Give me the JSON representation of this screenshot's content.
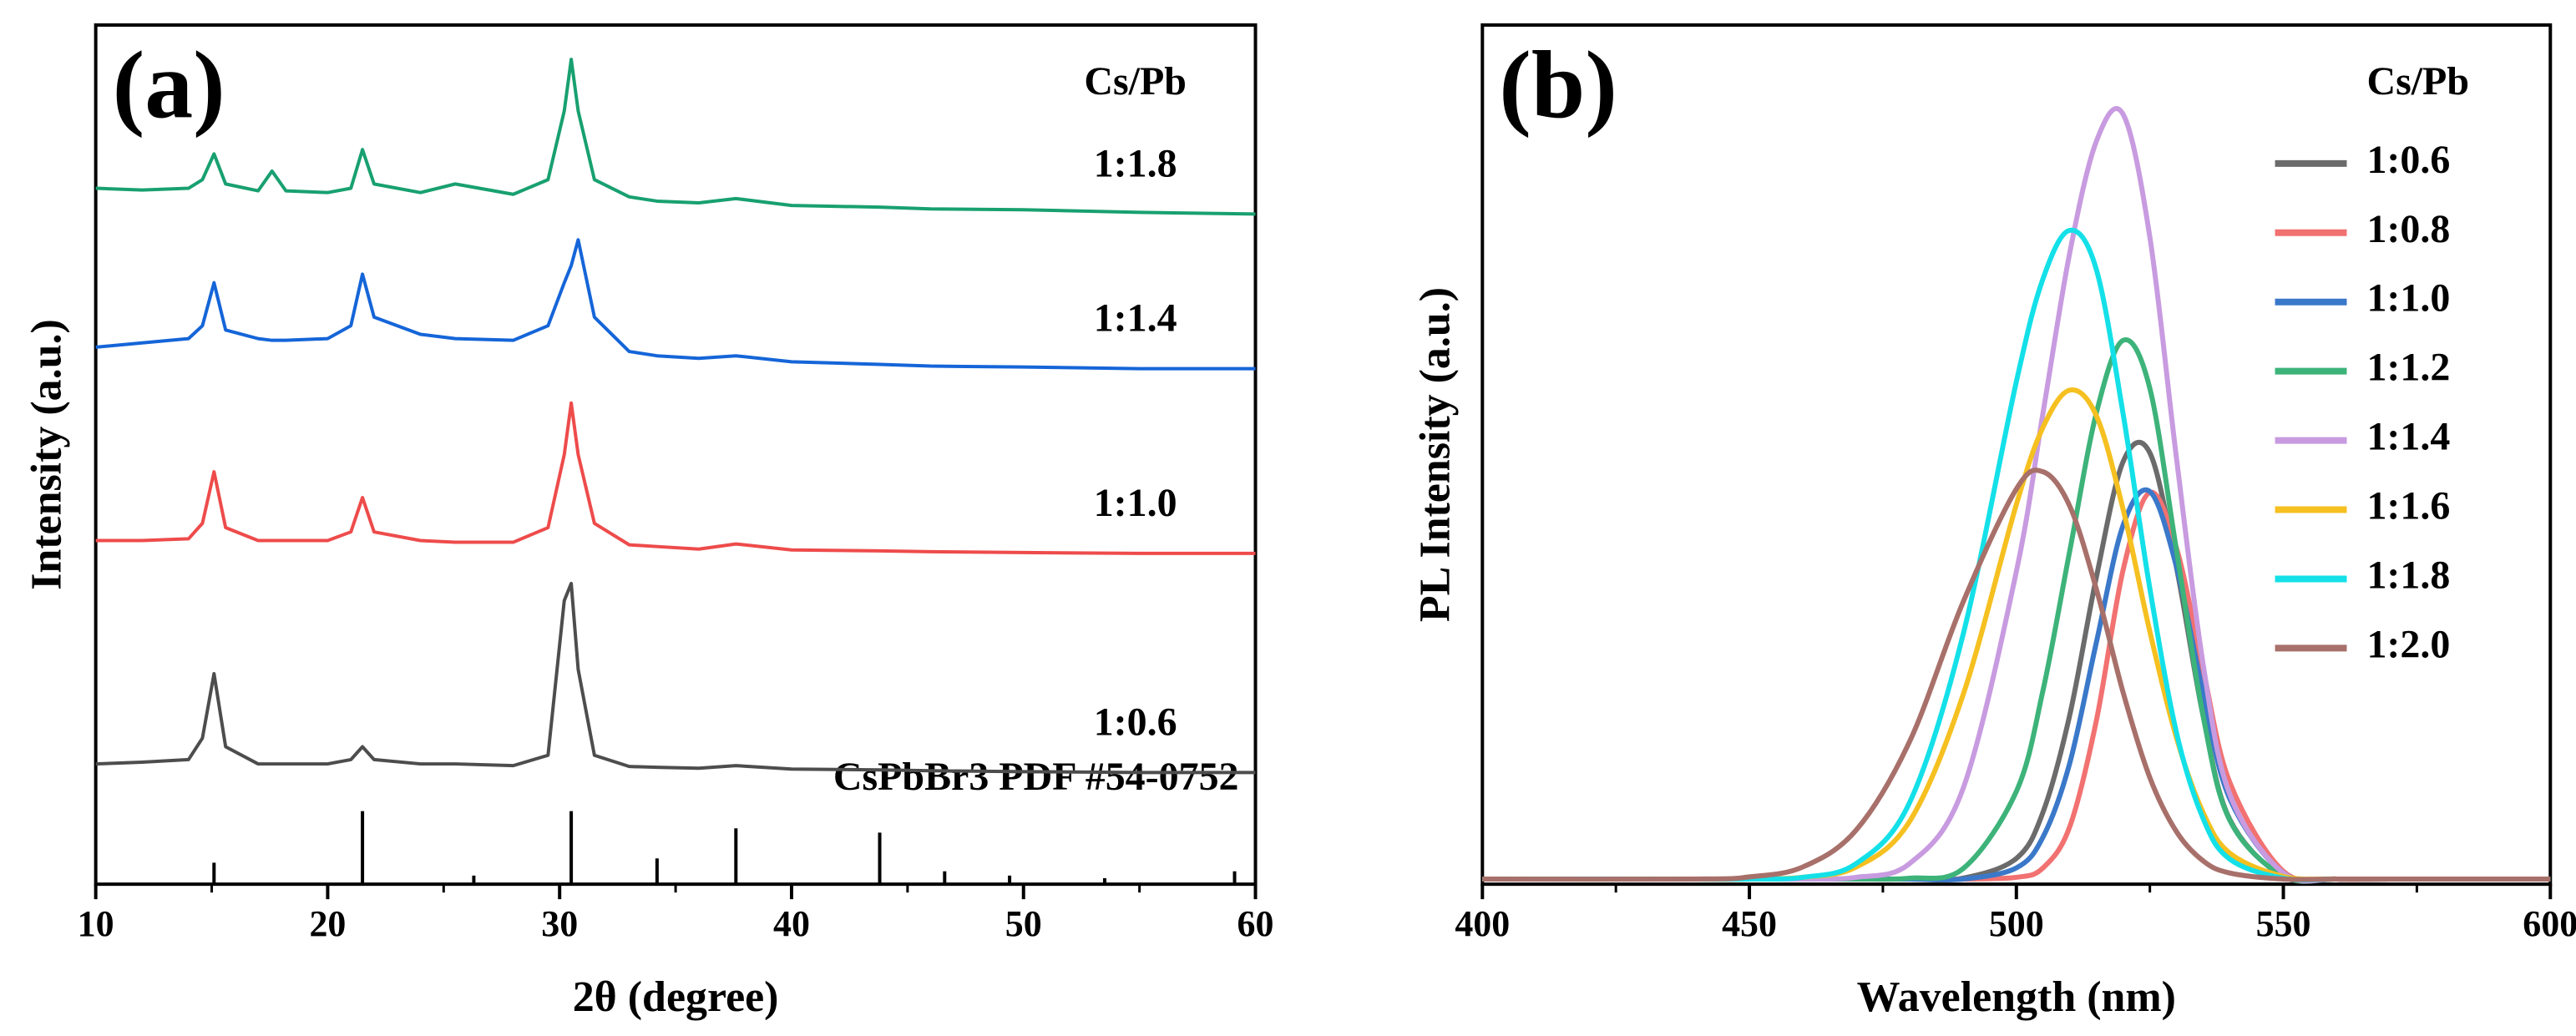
{
  "chart_data": [
    {
      "type": "line",
      "title": "(a)",
      "x_label": "2θ (degree)",
      "y_label": "Intensity (a.u.)",
      "legend_title": "Cs/Pb",
      "x": [
        10,
        12,
        14,
        14.6,
        15.1,
        15.6,
        17,
        17.6,
        18.2,
        20,
        21,
        21.5,
        22,
        24,
        25.5,
        28,
        29.5,
        30.2,
        30.5,
        30.8,
        31.5,
        33,
        34.2,
        36,
        37.6,
        40,
        43.8,
        46,
        50,
        55,
        60
      ],
      "series": [
        {
          "name": "1:0.6",
          "color": "#4d4d4d",
          "values": [
            14,
            14.2,
            14.5,
            17,
            24.5,
            16,
            14,
            14,
            14,
            14,
            14.5,
            16,
            14.5,
            14,
            14,
            13.8,
            15,
            33,
            35,
            25,
            15,
            13.7,
            13.6,
            13.5,
            13.8,
            13.4,
            13.3,
            13.2,
            13.1,
            13,
            13
          ]
        },
        {
          "name": "1:1.0",
          "color": "#ee4b4b",
          "values": [
            40,
            40,
            40.2,
            42,
            48,
            41.5,
            40,
            40,
            40,
            40,
            41,
            45,
            41,
            40,
            39.8,
            39.8,
            41.5,
            50,
            56,
            50,
            42,
            39.5,
            39.3,
            39,
            39.6,
            38.9,
            38.8,
            38.7,
            38.6,
            38.5,
            38.5
          ]
        },
        {
          "name": "1:1.4",
          "color": "#1565d8",
          "values": [
            62.5,
            63,
            63.5,
            65,
            70,
            64.5,
            63.5,
            63.3,
            63.3,
            63.5,
            65,
            71,
            66,
            64,
            63.5,
            63.3,
            65,
            70,
            72,
            75,
            66,
            62,
            61.5,
            61.2,
            61.5,
            60.8,
            60.5,
            60.3,
            60.2,
            60,
            60
          ]
        },
        {
          "name": "1:1.8",
          "color": "#18a070",
          "values": [
            81,
            80.8,
            81,
            82,
            85,
            81.5,
            80.7,
            83,
            80.7,
            80.5,
            81,
            85.5,
            81.5,
            80.5,
            81.5,
            80.3,
            82,
            90,
            96,
            90,
            82,
            80,
            79.5,
            79.3,
            79.8,
            79,
            78.8,
            78.6,
            78.5,
            78.2,
            78
          ]
        }
      ],
      "reference": {
        "name": "CsPbBr3 PDF #54-0752",
        "color": "#000000",
        "x": [
          15.1,
          21.5,
          26.3,
          30.5,
          34.2,
          37.6,
          43.8,
          46.6,
          49.4,
          53.5,
          59.1
        ],
        "values": [
          2.5,
          8.5,
          1,
          8.5,
          3,
          6.5,
          6,
          1.5,
          1,
          0.7,
          1.5
        ]
      },
      "xlim": [
        10,
        60
      ],
      "ylim": [
        0,
        100
      ],
      "xticks": [
        10,
        20,
        30,
        40,
        50,
        60
      ],
      "xminorticks": [
        15,
        25,
        35,
        45,
        55
      ]
    },
    {
      "type": "line",
      "title": "(b)",
      "x_label": "Wavelength (nm)",
      "y_label": "PL Intensity (a.u.)",
      "legend_title": "Cs/Pb",
      "legend": "upper right",
      "x": [
        400,
        440,
        450,
        460,
        470,
        480,
        490,
        500,
        505,
        510,
        515,
        520,
        525,
        530,
        535,
        540,
        550,
        560,
        570,
        600
      ],
      "series": [
        {
          "name": "1:0.6",
          "color": "#6b6b6b",
          "values": [
            0.6,
            0.6,
            0.6,
            0.6,
            0.6,
            0.6,
            0.7,
            3.0,
            8.4,
            19.7,
            35.8,
            49.2,
            50.2,
            36.8,
            19.5,
            7.5,
            0.9,
            0.6,
            0.6,
            0.6
          ]
        },
        {
          "name": "1:0.8",
          "color": "#f27171",
          "values": [
            0.6,
            0.6,
            0.6,
            0.6,
            0.6,
            0.6,
            0.6,
            0.8,
            1.9,
            6.7,
            19.1,
            36.6,
            45.6,
            39.1,
            24.9,
            11.8,
            1.5,
            0.6,
            0.6,
            0.6
          ]
        },
        {
          "name": "1:1.0",
          "color": "#3a78c9",
          "values": [
            0.6,
            0.6,
            0.6,
            0.6,
            0.6,
            0.6,
            0.6,
            1.9,
            5.5,
            14.1,
            28.2,
            41.8,
            45.7,
            36.9,
            22.2,
            9.9,
            1.3,
            0.6,
            0.6,
            0.6
          ]
        },
        {
          "name": "1:1.2",
          "color": "#3db37a",
          "values": [
            0.6,
            0.6,
            0.6,
            0.6,
            0.6,
            0.7,
            1.8,
            10.8,
            22.6,
            38.8,
            54.9,
            63.3,
            57.7,
            38.8,
            19.5,
            7.4,
            0.95,
            0.6,
            0.6,
            0.6
          ]
        },
        {
          "name": "1:1.4",
          "color": "#c89be0",
          "values": [
            0.6,
            0.6,
            0.6,
            0.6,
            0.8,
            2.4,
            11.1,
            36.4,
            54.9,
            73.5,
            86.5,
            89.6,
            75.3,
            49.5,
            25.5,
            10.4,
            1.3,
            0.6,
            0.6,
            0.6
          ]
        },
        {
          "name": "1:1.6",
          "color": "#f5c020",
          "values": [
            0.6,
            0.6,
            0.6,
            0.8,
            2.0,
            7.3,
            22,
            44.2,
            53.2,
            57.5,
            54.5,
            43.6,
            29.4,
            17,
            8.3,
            3.6,
            0.9,
            0.6,
            0.6,
            0.6
          ]
        },
        {
          "name": "1:1.8",
          "color": "#14e0e8",
          "values": [
            0.6,
            0.6,
            0.6,
            0.8,
            2.4,
            9.5,
            29,
            58.5,
            70.5,
            76.1,
            71.5,
            54.7,
            34.4,
            17.6,
            7.6,
            2.9,
            0.7,
            0.6,
            0.6,
            0.6
          ]
        },
        {
          "name": "1:2.0",
          "color": "#a8706a",
          "values": [
            0.6,
            0.6,
            0.85,
            2.0,
            6.3,
            16.6,
            32.8,
            46,
            48,
            44,
            34.3,
            22.3,
            12.4,
            6.1,
            2.7,
            1.3,
            0.6,
            0.6,
            0.6,
            0.6
          ]
        }
      ],
      "xlim": [
        400,
        600
      ],
      "ylim": [
        0,
        100
      ],
      "xticks": [
        400,
        450,
        500,
        550,
        600
      ],
      "xminorticks": [
        425,
        475,
        525,
        575
      ]
    }
  ]
}
